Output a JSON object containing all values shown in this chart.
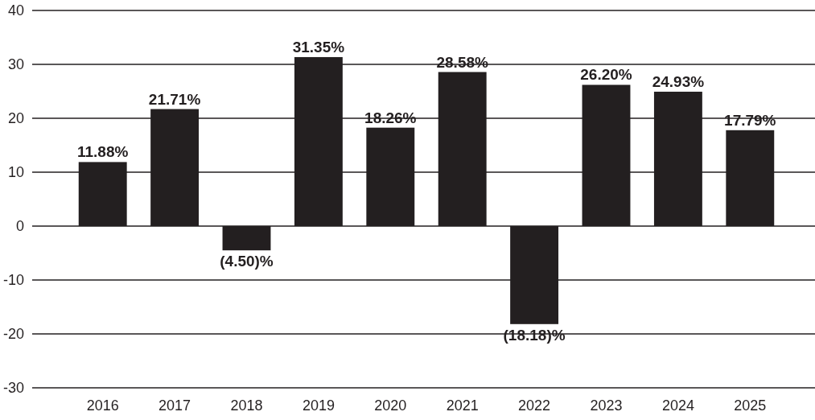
{
  "chart_data": {
    "type": "bar",
    "categories": [
      "2016",
      "2017",
      "2018",
      "2019",
      "2020",
      "2021",
      "2022",
      "2023",
      "2024",
      "2025"
    ],
    "values": [
      11.88,
      21.71,
      -4.5,
      31.35,
      18.26,
      28.58,
      -18.18,
      26.2,
      24.93,
      17.79
    ],
    "value_labels": [
      "11.88%",
      "21.71%",
      "(4.50)%",
      "31.35%",
      "18.26%",
      "28.58%",
      "(18.18)%",
      "26.20%",
      "24.93%",
      "17.79%"
    ],
    "color": "#231f20",
    "ylim": [
      -30,
      40
    ],
    "yticks": [
      -30,
      -20,
      -10,
      0,
      10,
      20,
      30,
      40
    ],
    "grid": "y"
  }
}
